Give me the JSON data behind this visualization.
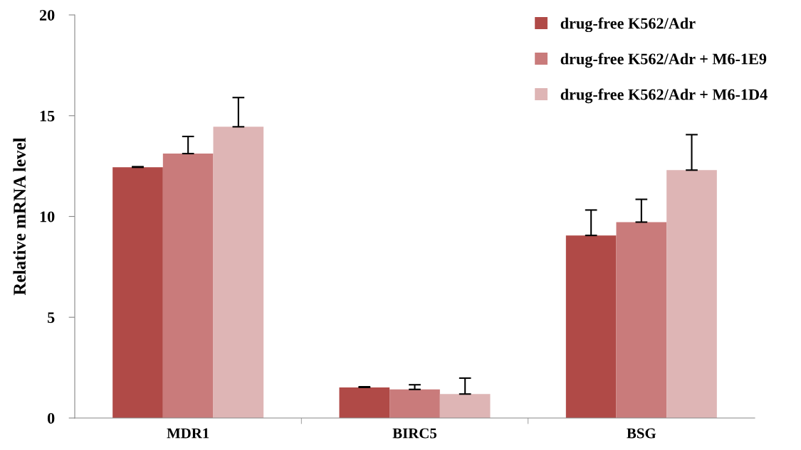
{
  "chart_data": {
    "type": "bar",
    "ylabel": "Relative mRNA level",
    "categories": [
      "MDR1",
      "BIRC5",
      "BSG"
    ],
    "series": [
      {
        "name": "drug-free K562/Adr",
        "color": "#b04a47",
        "values": [
          12.44,
          1.52,
          9.06
        ],
        "errors": [
          [
            12.44,
            12.47
          ],
          [
            1.52,
            1.55
          ],
          [
            9.06,
            10.32
          ]
        ]
      },
      {
        "name": "drug-free K562/Adr + M6-1E9",
        "color": "#c97b7b",
        "values": [
          13.12,
          1.42,
          9.72
        ],
        "errors": [
          [
            13.12,
            13.97
          ],
          [
            1.42,
            1.65
          ],
          [
            9.72,
            10.85
          ]
        ]
      },
      {
        "name": "drug-free K562/Adr + M6-1D4",
        "color": "#deb5b5",
        "values": [
          14.45,
          1.19,
          12.3
        ],
        "errors": [
          [
            14.45,
            15.9
          ],
          [
            1.19,
            1.98
          ],
          [
            12.3,
            14.06
          ]
        ]
      }
    ],
    "ylim": [
      0,
      20
    ],
    "yticks": [
      0,
      5,
      10,
      15,
      20
    ],
    "grid": false,
    "legend": "top right"
  }
}
